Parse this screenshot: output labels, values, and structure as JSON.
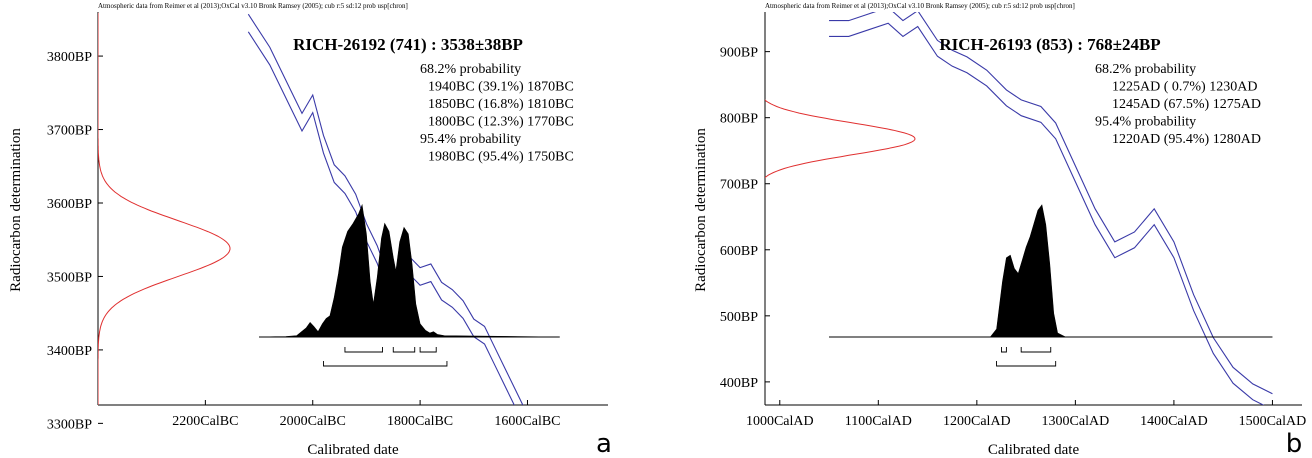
{
  "chart_data": [
    {
      "type": "area",
      "panel_label": "a",
      "header": "Atmospheric data from Reimer et al (2013);OxCal v3.10 Bronk Ramsey (2005); cub r:5 sd:12 prob usp[chron]",
      "title": "RICH-26192 (741) : 3538±38BP",
      "xlabel": "Calibrated date",
      "ylabel": "Radiocarbon determination",
      "x_ticks": [
        "2200CalBC",
        "2000CalBC",
        "1800CalBC",
        "1600CalBC"
      ],
      "x_tick_values": [
        2200,
        2000,
        1800,
        1600
      ],
      "x_range": [
        2400,
        1450
      ],
      "y_ticks": [
        "3800BP",
        "3700BP",
        "3600BP",
        "3500BP",
        "3400BP",
        "3300BP"
      ],
      "y_tick_values": [
        3800,
        3700,
        3600,
        3500,
        3400,
        3300
      ],
      "y_range": [
        3325,
        3860
      ],
      "probability_text": [
        "68.2% probability",
        "1940BC (39.1%) 1870BC",
        "1850BC (16.8%) 1810BC",
        "1800BC (12.3%) 1770BC",
        "95.4% probability",
        "1980BC (95.4%) 1750BC"
      ],
      "radiocarbon_curve": {
        "mean": 3538,
        "sd": 38,
        "color": "#e03030"
      },
      "calibration_curve": {
        "color": "#3a3aa8",
        "points": [
          [
            2120,
            3845
          ],
          [
            2080,
            3800
          ],
          [
            2040,
            3740
          ],
          [
            2020,
            3710
          ],
          [
            2000,
            3735
          ],
          [
            1980,
            3680
          ],
          [
            1960,
            3640
          ],
          [
            1940,
            3625
          ],
          [
            1920,
            3600
          ],
          [
            1900,
            3560
          ],
          [
            1880,
            3530
          ],
          [
            1860,
            3490
          ],
          [
            1840,
            3490
          ],
          [
            1820,
            3515
          ],
          [
            1800,
            3500
          ],
          [
            1780,
            3505
          ],
          [
            1760,
            3480
          ],
          [
            1740,
            3470
          ],
          [
            1720,
            3455
          ],
          [
            1700,
            3430
          ],
          [
            1680,
            3420
          ],
          [
            1660,
            3390
          ],
          [
            1640,
            3360
          ],
          [
            1620,
            3330
          ],
          [
            1600,
            3300
          ],
          [
            1580,
            3295
          ],
          [
            1560,
            3280
          ],
          [
            1540,
            3265
          ]
        ],
        "band_half_width": 12
      },
      "probability_distribution": {
        "x_start": 2100,
        "x_end": 1540,
        "points": [
          [
            2100,
            0
          ],
          [
            2070,
            0.002
          ],
          [
            2050,
            0.004
          ],
          [
            2030,
            0.01
          ],
          [
            2012,
            0.07
          ],
          [
            2005,
            0.11
          ],
          [
            1998,
            0.08
          ],
          [
            1990,
            0.04
          ],
          [
            1982,
            0.1
          ],
          [
            1975,
            0.14
          ],
          [
            1968,
            0.16
          ],
          [
            1960,
            0.3
          ],
          [
            1952,
            0.48
          ],
          [
            1945,
            0.68
          ],
          [
            1935,
            0.8
          ],
          [
            1925,
            0.86
          ],
          [
            1915,
            0.93
          ],
          [
            1908,
            1.0
          ],
          [
            1900,
            0.78
          ],
          [
            1893,
            0.42
          ],
          [
            1887,
            0.25
          ],
          [
            1880,
            0.45
          ],
          [
            1872,
            0.75
          ],
          [
            1866,
            0.86
          ],
          [
            1858,
            0.8
          ],
          [
            1850,
            0.6
          ],
          [
            1845,
            0.5
          ],
          [
            1838,
            0.72
          ],
          [
            1830,
            0.83
          ],
          [
            1822,
            0.78
          ],
          [
            1815,
            0.55
          ],
          [
            1808,
            0.25
          ],
          [
            1800,
            0.1
          ],
          [
            1790,
            0.05
          ],
          [
            1782,
            0.03
          ],
          [
            1775,
            0.04
          ],
          [
            1768,
            0.02
          ],
          [
            1755,
            0.01
          ],
          [
            1540,
            0
          ]
        ]
      },
      "ranges_68": [
        [
          1940,
          1870
        ],
        [
          1850,
          1810
        ],
        [
          1800,
          1770
        ]
      ],
      "ranges_95": [
        [
          1980,
          1750
        ]
      ]
    },
    {
      "type": "area",
      "panel_label": "b",
      "header": "Atmospheric data from Reimer et al (2013);OxCal v3.10 Bronk Ramsey (2005); cub r:5 sd:12 prob usp[chron]",
      "title": "RICH-26193 (853) : 768±24BP",
      "xlabel": "Calibrated date",
      "ylabel": "Radiocarbon determination",
      "x_ticks": [
        "1000CalAD",
        "1100CalAD",
        "1200CalAD",
        "1300CalAD",
        "1400CalAD",
        "1500CalAD"
      ],
      "x_tick_values": [
        1000,
        1100,
        1200,
        1300,
        1400,
        1500
      ],
      "x_range": [
        985,
        1530
      ],
      "y_ticks": [
        "900BP",
        "800BP",
        "700BP",
        "600BP",
        "500BP",
        "400BP"
      ],
      "y_tick_values": [
        900,
        800,
        700,
        600,
        500,
        400
      ],
      "y_range": [
        365,
        960
      ],
      "probability_text": [
        "68.2% probability",
        "1225AD ( 0.7%) 1230AD",
        "1245AD (67.5%) 1275AD",
        "95.4% probability",
        "1220AD (95.4%) 1280AD"
      ],
      "radiocarbon_curve": {
        "mean": 768,
        "sd": 24,
        "color": "#e03030"
      },
      "calibration_curve": {
        "color": "#3a3aa8",
        "points": [
          [
            1050,
            935
          ],
          [
            1070,
            935
          ],
          [
            1090,
            945
          ],
          [
            1110,
            955
          ],
          [
            1125,
            935
          ],
          [
            1140,
            950
          ],
          [
            1160,
            905
          ],
          [
            1175,
            890
          ],
          [
            1190,
            880
          ],
          [
            1210,
            860
          ],
          [
            1230,
            830
          ],
          [
            1245,
            815
          ],
          [
            1265,
            805
          ],
          [
            1280,
            780
          ],
          [
            1300,
            715
          ],
          [
            1320,
            650
          ],
          [
            1340,
            600
          ],
          [
            1360,
            615
          ],
          [
            1380,
            650
          ],
          [
            1400,
            600
          ],
          [
            1420,
            520
          ],
          [
            1440,
            455
          ],
          [
            1460,
            410
          ],
          [
            1480,
            385
          ],
          [
            1500,
            370
          ]
        ],
        "band_half_width": 12
      },
      "probability_distribution": {
        "x_start": 1050,
        "x_end": 1500,
        "points": [
          [
            1050,
            0
          ],
          [
            1200,
            0
          ],
          [
            1214,
            0.002
          ],
          [
            1220,
            0.06
          ],
          [
            1226,
            0.42
          ],
          [
            1230,
            0.6
          ],
          [
            1234,
            0.62
          ],
          [
            1238,
            0.52
          ],
          [
            1242,
            0.48
          ],
          [
            1246,
            0.58
          ],
          [
            1250,
            0.68
          ],
          [
            1254,
            0.76
          ],
          [
            1258,
            0.86
          ],
          [
            1262,
            0.96
          ],
          [
            1266,
            1.0
          ],
          [
            1270,
            0.85
          ],
          [
            1274,
            0.55
          ],
          [
            1278,
            0.18
          ],
          [
            1282,
            0.03
          ],
          [
            1290,
            0
          ],
          [
            1500,
            0
          ]
        ]
      },
      "ranges_68": [
        [
          1225,
          1230
        ],
        [
          1245,
          1275
        ]
      ],
      "ranges_95": [
        [
          1220,
          1280
        ]
      ]
    }
  ]
}
